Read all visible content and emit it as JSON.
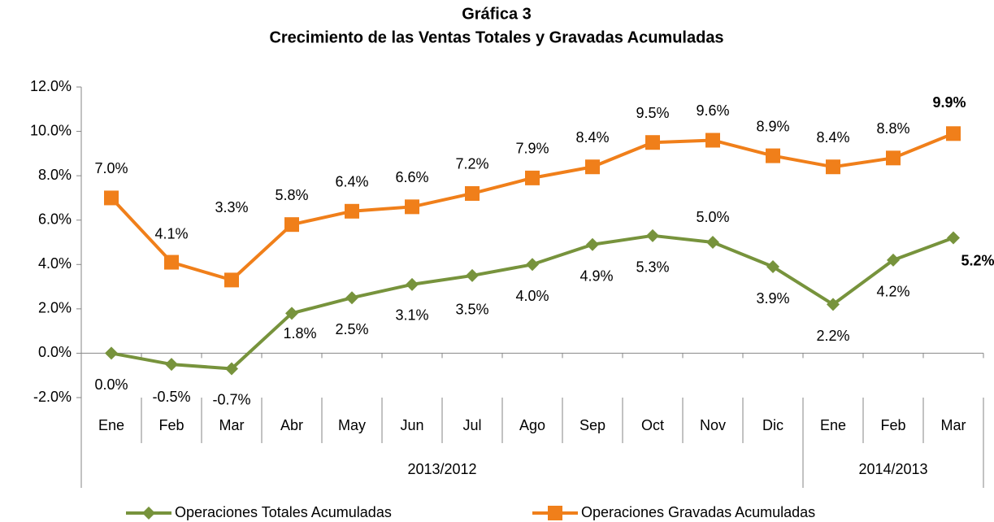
{
  "chart_data": {
    "type": "line",
    "title": "Gráfica 3",
    "subtitle": "Crecimiento de las Ventas  Totales  y Gravadas Acumuladas",
    "categories": [
      "Ene",
      "Feb",
      "Mar",
      "Abr",
      "May",
      "Jun",
      "Jul",
      "Ago",
      "Sep",
      "Oct",
      "Nov",
      "Dic",
      "Ene",
      "Feb",
      "Mar"
    ],
    "groups": [
      {
        "name": "2013/2012",
        "count": 12
      },
      {
        "name": "2014/2013",
        "count": 3
      }
    ],
    "series": [
      {
        "name": "Operaciones Totales Acumuladas",
        "color": "#77933c",
        "marker": "diamond",
        "values": [
          0.0,
          -0.5,
          -0.7,
          1.8,
          2.5,
          3.1,
          3.5,
          4.0,
          4.9,
          5.3,
          5.0,
          3.9,
          2.2,
          4.2,
          5.2
        ],
        "value_labels": [
          "0.0%",
          "-0.5%",
          "-0.7%",
          "1.8%",
          "2.5%",
          "3.1%",
          "3.5%",
          "4.0%",
          "4.9%",
          "5.3%",
          "5.0%",
          "3.9%",
          "2.2%",
          "4.2%",
          "5.2%"
        ]
      },
      {
        "name": "Operaciones Gravadas Acumuladas",
        "color": "#f07f1a",
        "marker": "square",
        "values": [
          7.0,
          4.1,
          3.3,
          5.8,
          6.4,
          6.6,
          7.2,
          7.9,
          8.4,
          9.5,
          9.6,
          8.9,
          8.4,
          8.8,
          9.9
        ],
        "value_labels": [
          "7.0%",
          "4.1%",
          "3.3%",
          "5.8%",
          "6.4%",
          "6.6%",
          "7.2%",
          "7.9%",
          "8.4%",
          "9.5%",
          "9.6%",
          "8.9%",
          "8.4%",
          "8.8%",
          "9.9%"
        ]
      }
    ],
    "ylim": [
      -2,
      12
    ],
    "yticks": [
      {
        "value": -2,
        "label": "-2.0%"
      },
      {
        "value": 0,
        "label": "0.0%"
      },
      {
        "value": 2,
        "label": "2.0%"
      },
      {
        "value": 4,
        "label": "4.0%"
      },
      {
        "value": 6,
        "label": "6.0%"
      },
      {
        "value": 8,
        "label": "8.0%"
      },
      {
        "value": 10,
        "label": "10.0%"
      },
      {
        "value": 12,
        "label": "12.0%"
      }
    ],
    "grid": false,
    "legend": "bottom"
  }
}
